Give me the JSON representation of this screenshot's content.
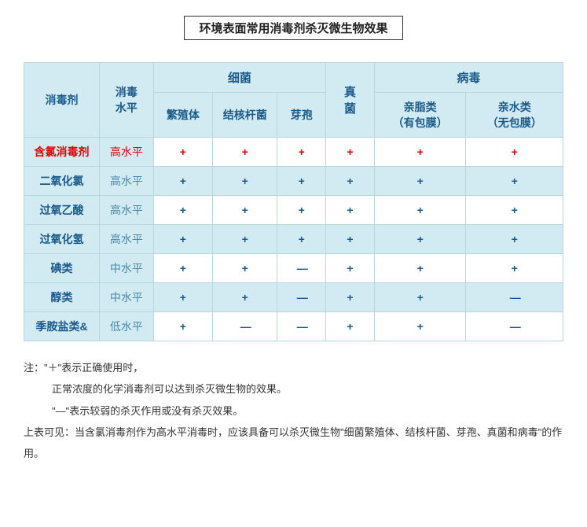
{
  "title": "环境表面常用消毒剂杀灭微生物效果",
  "headers": {
    "col_agent": "消毒剂",
    "col_level": "消毒\n水平",
    "group_bacteria": "细菌",
    "group_fungi": "真\n菌",
    "group_virus": "病毒",
    "sub_vegetative": "繁殖体",
    "sub_tb": "结核杆菌",
    "sub_spore": "芽孢",
    "sub_lipophilic": "亲脂类\n（有包膜）",
    "sub_hydrophilic": "亲水类\n（无包膜）"
  },
  "rows": [
    {
      "name": "含氯消毒剂",
      "level": "高水平",
      "cells": [
        "+",
        "+",
        "+",
        "+",
        "+",
        "+"
      ],
      "highlight": true,
      "alt": false
    },
    {
      "name": "二氧化氯",
      "level": "高水平",
      "cells": [
        "+",
        "+",
        "+",
        "+",
        "+",
        "+"
      ],
      "highlight": false,
      "alt": true
    },
    {
      "name": "过氧乙酸",
      "level": "高水平",
      "cells": [
        "+",
        "+",
        "+",
        "+",
        "+",
        "+"
      ],
      "highlight": false,
      "alt": false
    },
    {
      "name": "过氧化氢",
      "level": "高水平",
      "cells": [
        "+",
        "+",
        "+",
        "+",
        "+",
        "+"
      ],
      "highlight": false,
      "alt": true
    },
    {
      "name": "碘类",
      "level": "中水平",
      "cells": [
        "+",
        "+",
        "—",
        "+",
        "+",
        "+"
      ],
      "highlight": false,
      "alt": false
    },
    {
      "name": "醇类",
      "level": "中水平",
      "cells": [
        "+",
        "+",
        "—",
        "+",
        "+",
        "—"
      ],
      "highlight": false,
      "alt": true
    },
    {
      "name": "季胺盐类&",
      "level": "低水平",
      "cells": [
        "+",
        "—",
        "—",
        "+",
        "+",
        "—"
      ],
      "highlight": false,
      "alt": false
    }
  ],
  "notes": {
    "line1": "注：\"＋\"表示正确使用时，",
    "line2": "正常浓度的化学消毒剂可以达到杀灭微生物的效果。",
    "line3": "\"—\"表示较弱的杀灭作用或没有杀灭效果。",
    "line4": "上表可见：当含氯消毒剂作为高水平消毒时，应该具备可以杀灭微生物\"细菌繁殖体、结核杆菌、芽孢、真菌和病毒\"的作用。"
  },
  "colors": {
    "header_bg": "#d2eaf1",
    "border": "#b8d6e0",
    "header_text": "#1a5a8a",
    "highlight_text": "#e00000",
    "body_text": "#333333",
    "level_text": "#4a8aaa"
  },
  "col_widths": [
    "14%",
    "10%",
    "11%",
    "12%",
    "9%",
    "9%",
    "17%",
    "18%"
  ]
}
